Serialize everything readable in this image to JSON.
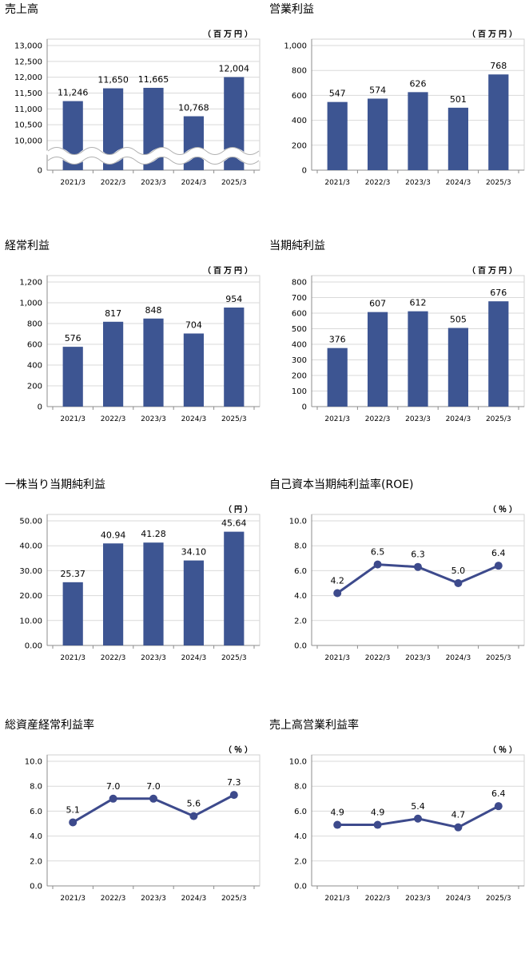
{
  "colors": {
    "bar": "#3d5592",
    "line": "#3d4a8c",
    "grid": "#d9d9d9",
    "axis": "#8c8c8c",
    "frame": "#d0d0d0"
  },
  "chart_data": [
    {
      "type": "bar",
      "title": "売上高",
      "unit": "（百万円）",
      "categories": [
        "2021/3",
        "2022/3",
        "2023/3",
        "2024/3",
        "2025/3"
      ],
      "values": [
        11246,
        11650,
        11665,
        10768,
        12004
      ],
      "value_labels": [
        "11,246",
        "11,650",
        "11,665",
        "10,768",
        "12,004"
      ],
      "axis_break": true,
      "ylim": [
        10000,
        13000
      ],
      "yticks": [
        10000,
        10500,
        11000,
        11500,
        12000,
        12500,
        13000
      ],
      "ytick_labels": [
        "10,000",
        "10,500",
        "11,000",
        "11,500",
        "12,000",
        "12,500",
        "13,000"
      ],
      "bottom_label": "0",
      "grid": true
    },
    {
      "type": "bar",
      "title": "営業利益",
      "unit": "（百万円）",
      "categories": [
        "2021/3",
        "2022/3",
        "2023/3",
        "2024/3",
        "2025/3"
      ],
      "values": [
        547,
        574,
        626,
        501,
        768
      ],
      "value_labels": [
        "547",
        "574",
        "626",
        "501",
        "768"
      ],
      "ylim": [
        0,
        1000
      ],
      "yticks": [
        0,
        200,
        400,
        600,
        800,
        1000
      ],
      "ytick_labels": [
        "0",
        "200",
        "400",
        "600",
        "800",
        "1,000"
      ],
      "grid": true
    },
    {
      "type": "bar",
      "title": "経常利益",
      "unit": "（百万円）",
      "categories": [
        "2021/3",
        "2022/3",
        "2023/3",
        "2024/3",
        "2025/3"
      ],
      "values": [
        576,
        817,
        848,
        704,
        954
      ],
      "value_labels": [
        "576",
        "817",
        "848",
        "704",
        "954"
      ],
      "ylim": [
        0,
        1200
      ],
      "yticks": [
        0,
        200,
        400,
        600,
        800,
        1000,
        1200
      ],
      "ytick_labels": [
        "0",
        "200",
        "400",
        "600",
        "800",
        "1,000",
        "1,200"
      ],
      "grid": true
    },
    {
      "type": "bar",
      "title": "当期純利益",
      "unit": "（百万円）",
      "categories": [
        "2021/3",
        "2022/3",
        "2023/3",
        "2024/3",
        "2025/3"
      ],
      "values": [
        376,
        607,
        612,
        505,
        676
      ],
      "value_labels": [
        "376",
        "607",
        "612",
        "505",
        "676"
      ],
      "ylim": [
        0,
        800
      ],
      "yticks": [
        0,
        100,
        200,
        300,
        400,
        500,
        600,
        700,
        800
      ],
      "ytick_labels": [
        "0",
        "100",
        "200",
        "300",
        "400",
        "500",
        "600",
        "700",
        "800"
      ],
      "grid": true
    },
    {
      "type": "bar",
      "title": "一株当り当期純利益",
      "unit": "（円）",
      "categories": [
        "2021/3",
        "2022/3",
        "2023/3",
        "2024/3",
        "2025/3"
      ],
      "values": [
        25.37,
        40.94,
        41.28,
        34.1,
        45.64
      ],
      "value_labels": [
        "25.37",
        "40.94",
        "41.28",
        "34.10",
        "45.64"
      ],
      "ylim": [
        0,
        50
      ],
      "yticks": [
        0,
        10,
        20,
        30,
        40,
        50
      ],
      "ytick_labels": [
        "0.00",
        "10.00",
        "20.00",
        "30.00",
        "40.00",
        "50.00"
      ],
      "grid": true
    },
    {
      "type": "line",
      "title": "自己資本当期純利益率(ROE)",
      "unit": "（％）",
      "categories": [
        "2021/3",
        "2022/3",
        "2023/3",
        "2024/3",
        "2025/3"
      ],
      "values": [
        4.2,
        6.5,
        6.3,
        5.0,
        6.4
      ],
      "value_labels": [
        "4.2",
        "6.5",
        "6.3",
        "5.0",
        "6.4"
      ],
      "ylim": [
        0,
        10
      ],
      "yticks": [
        0,
        2,
        4,
        6,
        8,
        10
      ],
      "ytick_labels": [
        "0.0",
        "2.0",
        "4.0",
        "6.0",
        "8.0",
        "10.0"
      ],
      "grid": true
    },
    {
      "type": "line",
      "title": "総資産経常利益率",
      "unit": "（％）",
      "categories": [
        "2021/3",
        "2022/3",
        "2023/3",
        "2024/3",
        "2025/3"
      ],
      "values": [
        5.1,
        7.0,
        7.0,
        5.6,
        7.3
      ],
      "value_labels": [
        "5.1",
        "7.0",
        "7.0",
        "5.6",
        "7.3"
      ],
      "ylim": [
        0,
        10
      ],
      "yticks": [
        0,
        2,
        4,
        6,
        8,
        10
      ],
      "ytick_labels": [
        "0.0",
        "2.0",
        "4.0",
        "6.0",
        "8.0",
        "10.0"
      ],
      "grid": true
    },
    {
      "type": "line",
      "title": "売上高営業利益率",
      "unit": "（％）",
      "categories": [
        "2021/3",
        "2022/3",
        "2023/3",
        "2024/3",
        "2025/3"
      ],
      "values": [
        4.9,
        4.9,
        5.4,
        4.7,
        6.4
      ],
      "value_labels": [
        "4.9",
        "4.9",
        "5.4",
        "4.7",
        "6.4"
      ],
      "ylim": [
        0,
        10
      ],
      "yticks": [
        0,
        2,
        4,
        6,
        8,
        10
      ],
      "ytick_labels": [
        "0.0",
        "2.0",
        "4.0",
        "6.0",
        "8.0",
        "10.0"
      ],
      "grid": true
    }
  ]
}
